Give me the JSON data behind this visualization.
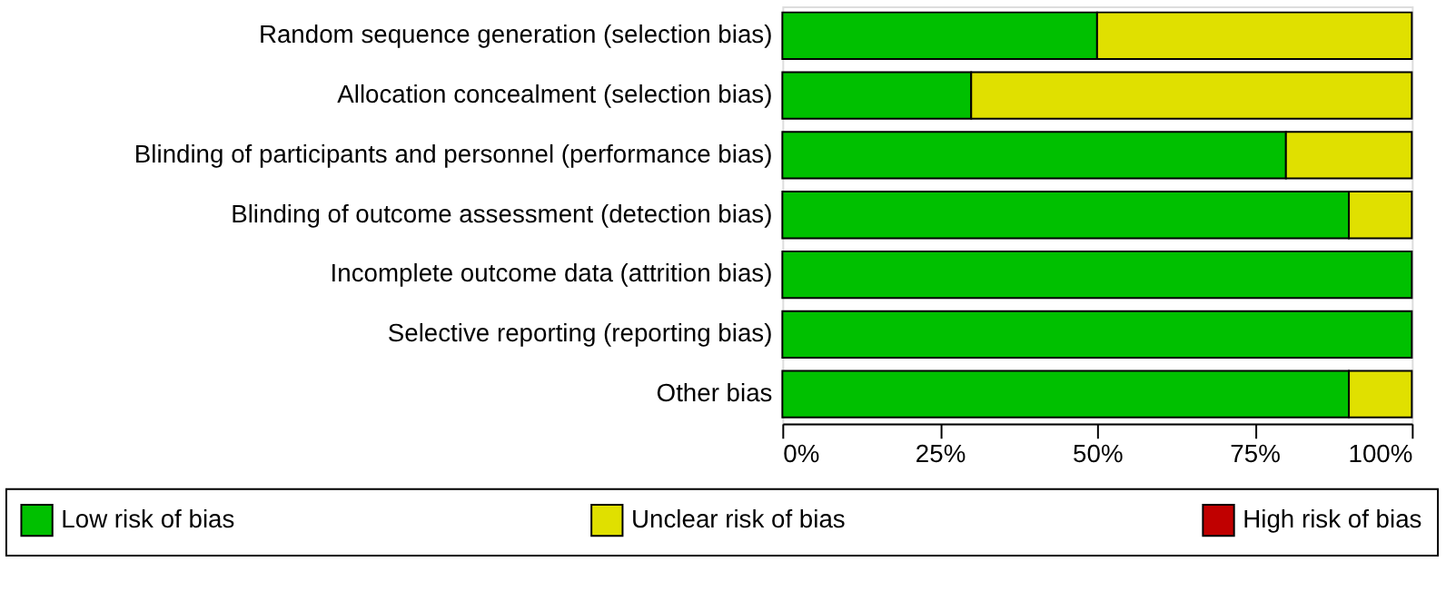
{
  "chart_data": {
    "type": "bar",
    "orientation": "horizontal",
    "stacked": true,
    "categories": [
      "Random sequence generation (selection bias)",
      "Allocation concealment (selection bias)",
      "Blinding of participants and personnel (performance bias)",
      "Blinding of outcome assessment (detection bias)",
      "Incomplete outcome data (attrition bias)",
      "Selective reporting (reporting bias)",
      "Other bias"
    ],
    "series": [
      {
        "name": "Low risk of bias",
        "color": "#00c000",
        "values": [
          50,
          30,
          80,
          90,
          100,
          100,
          90
        ]
      },
      {
        "name": "Unclear risk of bias",
        "color": "#e0e000",
        "values": [
          50,
          70,
          20,
          10,
          0,
          0,
          10
        ]
      },
      {
        "name": "High risk of bias",
        "color": "#c00000",
        "values": [
          0,
          0,
          0,
          0,
          0,
          0,
          0
        ]
      }
    ],
    "xlim": [
      0,
      100
    ],
    "xticks": [
      {
        "value": 0,
        "label": "0%"
      },
      {
        "value": 25,
        "label": "25%"
      },
      {
        "value": 50,
        "label": "50%"
      },
      {
        "value": 75,
        "label": "75%"
      },
      {
        "value": 100,
        "label": "100%"
      }
    ],
    "legend": "bottom"
  }
}
